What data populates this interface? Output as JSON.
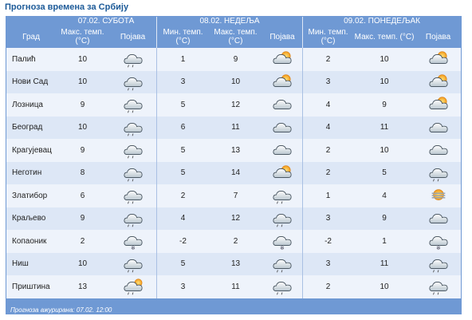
{
  "title": "Прогноза времена за Србију",
  "days": [
    {
      "label": "07.02. СУБОТА"
    },
    {
      "label": "08.02. НЕДЕЉА"
    },
    {
      "label": "09.02. ПОНЕДЕЉАК"
    }
  ],
  "columns": {
    "city": "Град",
    "max": "Макс. темп. (°C)",
    "min": "Мин. темп. (°C)",
    "phen": "Појава"
  },
  "rows": [
    {
      "city": "Палић",
      "d1_max": "10",
      "d1_icon": "cloud-rain-icon",
      "d2_min": "1",
      "d2_max": "9",
      "d2_icon": "sun-cloud-icon",
      "d3_min": "2",
      "d3_max": "10",
      "d3_icon": "sun-cloud-icon"
    },
    {
      "city": "Нови Сад",
      "d1_max": "10",
      "d1_icon": "cloud-rain-icon",
      "d2_min": "3",
      "d2_max": "10",
      "d2_icon": "sun-cloud-icon",
      "d3_min": "3",
      "d3_max": "10",
      "d3_icon": "sun-cloud-icon"
    },
    {
      "city": "Лозница",
      "d1_max": "9",
      "d1_icon": "cloud-rain-icon",
      "d2_min": "5",
      "d2_max": "12",
      "d2_icon": "cloud-icon",
      "d3_min": "4",
      "d3_max": "9",
      "d3_icon": "sun-cloud-icon"
    },
    {
      "city": "Београд",
      "d1_max": "10",
      "d1_icon": "cloud-rain-icon",
      "d2_min": "6",
      "d2_max": "11",
      "d2_icon": "cloud-icon",
      "d3_min": "4",
      "d3_max": "11",
      "d3_icon": "cloud-icon"
    },
    {
      "city": "Крагујевац",
      "d1_max": "9",
      "d1_icon": "cloud-rain-icon",
      "d2_min": "5",
      "d2_max": "13",
      "d2_icon": "cloud-icon",
      "d3_min": "2",
      "d3_max": "10",
      "d3_icon": "cloud-icon"
    },
    {
      "city": "Неготин",
      "d1_max": "8",
      "d1_icon": "cloud-rain-icon",
      "d2_min": "5",
      "d2_max": "14",
      "d2_icon": "sun-cloud-icon",
      "d3_min": "2",
      "d3_max": "5",
      "d3_icon": "cloud-rain-icon"
    },
    {
      "city": "Златибор",
      "d1_max": "6",
      "d1_icon": "cloud-rain-icon",
      "d2_min": "2",
      "d2_max": "7",
      "d2_icon": "cloud-rain-icon",
      "d3_min": "1",
      "d3_max": "4",
      "d3_icon": "fog-sun-icon"
    },
    {
      "city": "Краљево",
      "d1_max": "9",
      "d1_icon": "cloud-rain-icon",
      "d2_min": "4",
      "d2_max": "12",
      "d2_icon": "cloud-rain-icon",
      "d3_min": "3",
      "d3_max": "9",
      "d3_icon": "cloud-icon"
    },
    {
      "city": "Копаоник",
      "d1_max": "2",
      "d1_icon": "cloud-snow-icon",
      "d2_min": "-2",
      "d2_max": "2",
      "d2_icon": "cloud-snow-icon",
      "d3_min": "-2",
      "d3_max": "1",
      "d3_icon": "cloud-snow-icon"
    },
    {
      "city": "Ниш",
      "d1_max": "10",
      "d1_icon": "cloud-rain-icon",
      "d2_min": "5",
      "d2_max": "13",
      "d2_icon": "cloud-rain-icon",
      "d3_min": "3",
      "d3_max": "11",
      "d3_icon": "cloud-rain-icon"
    },
    {
      "city": "Приштина",
      "d1_max": "13",
      "d1_icon": "sun-cloud-rain-icon",
      "d2_min": "3",
      "d2_max": "11",
      "d2_icon": "cloud-rain-icon",
      "d3_min": "2",
      "d3_max": "10",
      "d3_icon": "cloud-rain-icon"
    }
  ],
  "footer": {
    "label": "Прогноза ажурирана:",
    "value": "07.02. 12:00"
  },
  "colors": {
    "header_bg": "#6f99d4",
    "title": "#1c5a98",
    "row_light": "#eef3fb",
    "row_dark": "#dde7f6"
  }
}
